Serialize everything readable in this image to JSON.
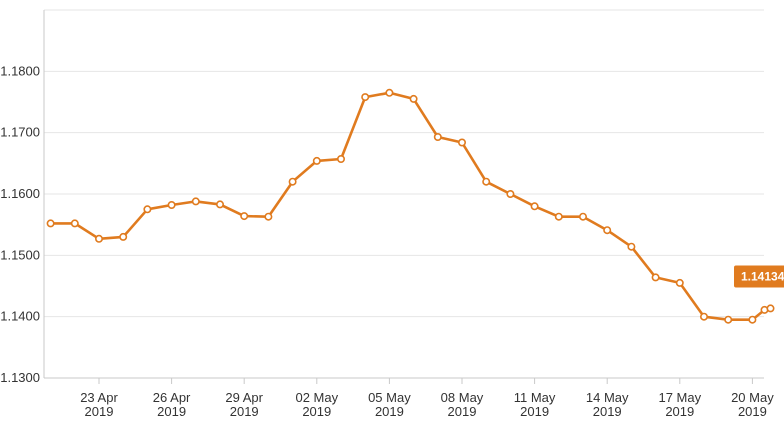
{
  "chart_data": {
    "type": "line",
    "title": "",
    "xlabel": "",
    "ylabel": "",
    "ylim": [
      1.13,
      1.19
    ],
    "y_ticks": [
      "1.1300",
      "1.1400",
      "1.1500",
      "1.1600",
      "1.1700",
      "1.1800"
    ],
    "x_ticks": [
      {
        "date": "2019-04-23",
        "line1": "23 Apr",
        "line2": "2019"
      },
      {
        "date": "2019-04-26",
        "line1": "26 Apr",
        "line2": "2019"
      },
      {
        "date": "2019-04-29",
        "line1": "29 Apr",
        "line2": "2019"
      },
      {
        "date": "2019-05-02",
        "line1": "02 May",
        "line2": "2019"
      },
      {
        "date": "2019-05-05",
        "line1": "05 May",
        "line2": "2019"
      },
      {
        "date": "2019-05-08",
        "line1": "08 May",
        "line2": "2019"
      },
      {
        "date": "2019-05-11",
        "line1": "11 May",
        "line2": "2019"
      },
      {
        "date": "2019-05-14",
        "line1": "14 May",
        "line2": "2019"
      },
      {
        "date": "2019-05-17",
        "line1": "17 May",
        "line2": "2019"
      },
      {
        "date": "2019-05-20",
        "line1": "20 May",
        "line2": "2019"
      }
    ],
    "grid": true,
    "series": [
      {
        "color": "#e07b1f",
        "points": [
          {
            "x": "2019-04-21 00:00",
            "y": 1.1552
          },
          {
            "x": "2019-04-22 00:00",
            "y": 1.1552
          },
          {
            "x": "2019-04-23 00:00",
            "y": 1.1527
          },
          {
            "x": "2019-04-24 00:00",
            "y": 1.153
          },
          {
            "x": "2019-04-25 00:00",
            "y": 1.1575
          },
          {
            "x": "2019-04-26 00:00",
            "y": 1.1582
          },
          {
            "x": "2019-04-27 00:00",
            "y": 1.1588
          },
          {
            "x": "2019-04-28 00:00",
            "y": 1.1583
          },
          {
            "x": "2019-04-29 00:00",
            "y": 1.1564
          },
          {
            "x": "2019-04-30 00:00",
            "y": 1.1563
          },
          {
            "x": "2019-05-01 00:00",
            "y": 1.162
          },
          {
            "x": "2019-05-02 00:00",
            "y": 1.1654
          },
          {
            "x": "2019-05-03 00:00",
            "y": 1.1657
          },
          {
            "x": "2019-05-04 00:00",
            "y": 1.1758
          },
          {
            "x": "2019-05-05 00:00",
            "y": 1.1765
          },
          {
            "x": "2019-05-06 00:00",
            "y": 1.1755
          },
          {
            "x": "2019-05-07 00:00",
            "y": 1.1693
          },
          {
            "x": "2019-05-08 00:00",
            "y": 1.1684
          },
          {
            "x": "2019-05-09 00:00",
            "y": 1.162
          },
          {
            "x": "2019-05-10 00:00",
            "y": 1.16
          },
          {
            "x": "2019-05-11 00:00",
            "y": 1.158
          },
          {
            "x": "2019-05-12 00:00",
            "y": 1.1563
          },
          {
            "x": "2019-05-13 00:00",
            "y": 1.1563
          },
          {
            "x": "2019-05-14 00:00",
            "y": 1.1541
          },
          {
            "x": "2019-05-15 00:00",
            "y": 1.1514
          },
          {
            "x": "2019-05-16 00:00",
            "y": 1.1464
          },
          {
            "x": "2019-05-17 00:00",
            "y": 1.1455
          },
          {
            "x": "2019-05-18 00:00",
            "y": 1.14
          },
          {
            "x": "2019-05-19 00:00",
            "y": 1.1395
          },
          {
            "x": "2019-05-20 00:00",
            "y": 1.1395
          },
          {
            "x": "2019-05-20 12:00",
            "y": 1.1411
          },
          {
            "x": "2019-05-20 18:00",
            "y": 1.14134
          }
        ]
      }
    ],
    "last_value_label": "1.14134",
    "last_value_badge_color": "#e07b1f"
  }
}
